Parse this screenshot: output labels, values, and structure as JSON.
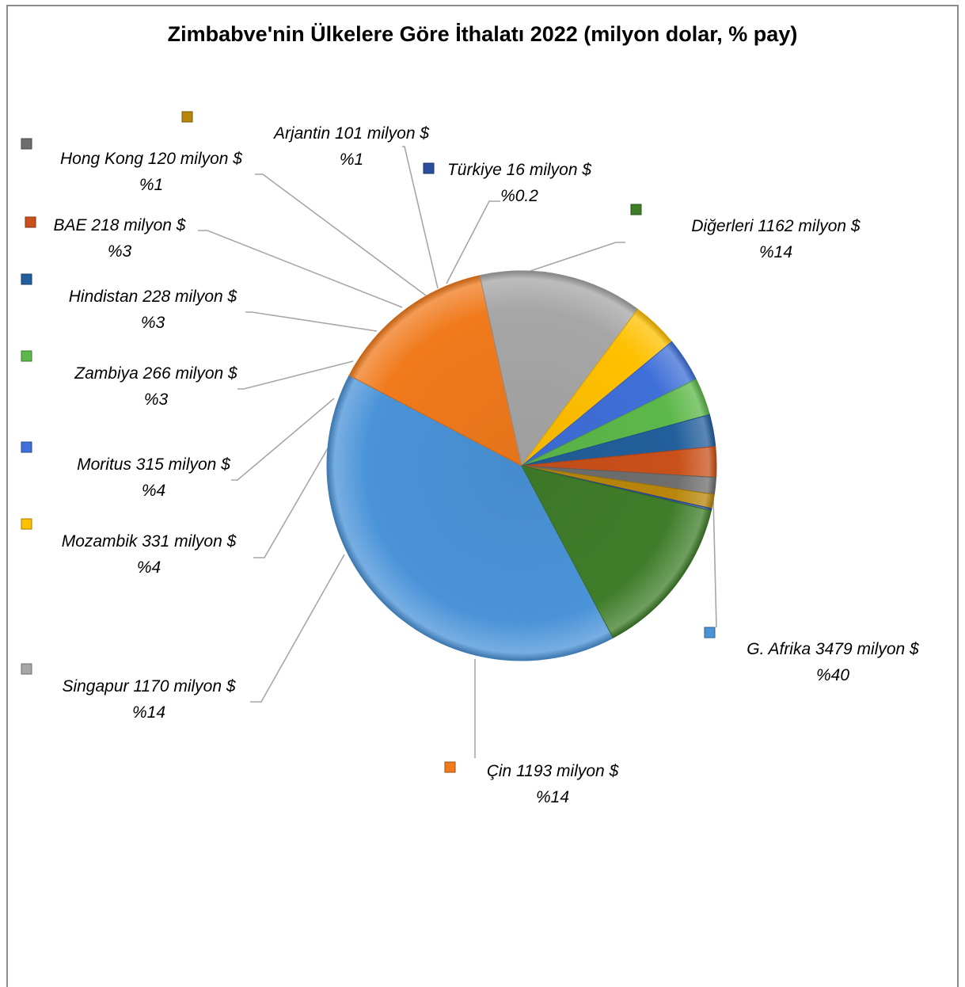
{
  "chart_data": {
    "type": "pie",
    "title": "Zimbabve'nin Ülkelere Göre İthalatı 2022 (milyon dolar, % pay)",
    "slices": [
      {
        "name": "G. Afrika",
        "value": 3479,
        "label": "G. Afrika 3479 milyon $",
        "pct": "%40",
        "color": "#4a93d8"
      },
      {
        "name": "Çin",
        "value": 1193,
        "label": "Çin 1193 milyon $",
        "pct": "%14",
        "color": "#f07a1c"
      },
      {
        "name": "Singapur",
        "value": 1170,
        "label": "Singapur 1170 milyon $",
        "pct": "%14",
        "color": "#a6a6a6"
      },
      {
        "name": "Mozambik",
        "value": 331,
        "label": "Mozambik 331 milyon $",
        "pct": "%4",
        "color": "#ffc000"
      },
      {
        "name": "Moritus",
        "value": 315,
        "label": "Moritus 315 milyon $",
        "pct": "%4",
        "color": "#3f6fd8"
      },
      {
        "name": "Zambiya",
        "value": 266,
        "label": "Zambiya 266 milyon $",
        "pct": "%3",
        "color": "#5db84a"
      },
      {
        "name": "Hindistan",
        "value": 228,
        "label": "Hindistan 228 milyon $",
        "pct": "%3",
        "color": "#235f9c"
      },
      {
        "name": "BAE",
        "value": 218,
        "label": "BAE 218 milyon $",
        "pct": "%3",
        "color": "#c9501a"
      },
      {
        "name": "Hong Kong",
        "value": 120,
        "label": "Hong Kong 120 milyon $",
        "pct": "%1",
        "color": "#6e6e6e"
      },
      {
        "name": "Arjantin",
        "value": 101,
        "label": "Arjantin 101 milyon $",
        "pct": "%1",
        "color": "#b8860b"
      },
      {
        "name": "Türkiye",
        "value": 16,
        "label": "Türkiye 16 milyon $",
        "pct": "%0.2",
        "color": "#2b4f9a"
      },
      {
        "name": "Diğerleri",
        "value": 1162,
        "label": "Diğerleri 1162 milyon $",
        "pct": "%14",
        "color": "#3f7d2a"
      }
    ]
  }
}
